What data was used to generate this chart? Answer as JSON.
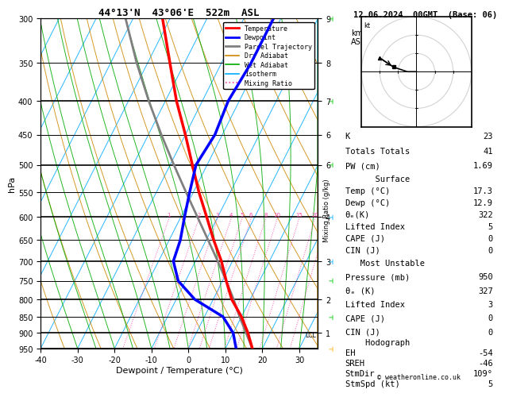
{
  "title_left": "44°13'N  43°06'E  522m  ASL",
  "title_right": "12.06.2024  00GMT  (Base: 06)",
  "xlabel": "Dewpoint / Temperature (°C)",
  "ylabel_left": "hPa",
  "pressure_levels": [
    300,
    350,
    400,
    450,
    500,
    550,
    600,
    650,
    700,
    750,
    800,
    850,
    900,
    950
  ],
  "temp_ticks": [
    -40,
    -30,
    -20,
    -10,
    0,
    10,
    20,
    30
  ],
  "km_ticks_p": [
    300,
    350,
    400,
    450,
    500,
    600,
    700,
    800,
    900
  ],
  "km_ticks_v": [
    "9",
    "8",
    "7",
    "6",
    "6",
    "4",
    "3",
    "2",
    "1"
  ],
  "temperature_profile": {
    "pressure": [
      950,
      900,
      850,
      800,
      750,
      700,
      650,
      600,
      550,
      500,
      450,
      400,
      350,
      300
    ],
    "temp": [
      17.3,
      14.0,
      10.0,
      5.0,
      1.0,
      -3.0,
      -8.0,
      -13.0,
      -18.5,
      -24.0,
      -30.0,
      -37.0,
      -44.0,
      -52.0
    ]
  },
  "dewpoint_profile": {
    "pressure": [
      950,
      900,
      850,
      800,
      750,
      700,
      650,
      600,
      550,
      500,
      450,
      400,
      350,
      300
    ],
    "dewp": [
      12.9,
      10.0,
      5.0,
      -5.0,
      -12.0,
      -16.0,
      -17.0,
      -19.0,
      -21.0,
      -23.0,
      -22.0,
      -23.0,
      -22.0,
      -22.0
    ]
  },
  "parcel_profile": {
    "pressure": [
      950,
      900,
      850,
      800,
      750,
      700,
      650,
      600,
      550,
      500,
      450,
      400,
      350,
      300
    ],
    "temp": [
      17.3,
      13.5,
      9.5,
      5.5,
      1.0,
      -4.0,
      -9.5,
      -15.5,
      -22.0,
      -29.0,
      -36.5,
      -44.5,
      -53.0,
      -62.0
    ]
  },
  "lcl_pressure": 905,
  "mixing_ratio_lines": [
    1,
    2,
    3,
    4,
    5,
    6,
    8,
    10,
    15,
    20,
    25
  ],
  "temp_color": "#ff0000",
  "dewp_color": "#0000ff",
  "parcel_color": "#808080",
  "dry_adiabat_color": "#cc8800",
  "wet_adiabat_color": "#00aa00",
  "isotherm_color": "#00aaff",
  "mixing_ratio_color": "#ff44aa",
  "info_panel": {
    "K": 23,
    "Totals_Totals": 41,
    "PW_cm": "1.69",
    "Surface_Temp": "17.3",
    "Surface_Dewp": "12.9",
    "Surface_theta_e": 322,
    "Surface_LI": 5,
    "Surface_CAPE": 0,
    "Surface_CIN": 0,
    "MU_Pressure": 950,
    "MU_theta_e": 327,
    "MU_LI": 3,
    "MU_CAPE": 0,
    "MU_CIN": 0,
    "EH": -54,
    "SREH": -46,
    "StmDir": "109°",
    "StmSpd": 5
  },
  "wind_barb_colors": {
    "950": "#ffaa00",
    "850": "#00cc00",
    "750": "#00cc00",
    "700": "#00aaff",
    "600": "#00aaff",
    "500": "#00cc00",
    "400": "#00cc00",
    "300": "#00cc00"
  }
}
